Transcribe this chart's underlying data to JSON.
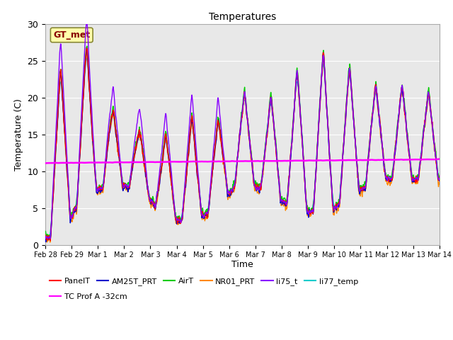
{
  "title": "Temperatures",
  "xlabel": "Time",
  "ylabel": "Temperature (C)",
  "ylim": [
    0,
    30
  ],
  "bg_color": "#e8e8e8",
  "fig_bg": "#ffffff",
  "series_order": [
    "li77_temp",
    "NR01_PRT",
    "AirT",
    "AM25T_PRT",
    "PanelT",
    "li75_t",
    "TC Prof A -32cm"
  ],
  "series": {
    "PanelT": {
      "color": "#ff0000",
      "lw": 1.0,
      "zorder": 5
    },
    "AM25T_PRT": {
      "color": "#0000cc",
      "lw": 1.0,
      "zorder": 4
    },
    "AirT": {
      "color": "#00cc00",
      "lw": 1.0,
      "zorder": 3
    },
    "NR01_PRT": {
      "color": "#ff8800",
      "lw": 1.0,
      "zorder": 2
    },
    "li75_t": {
      "color": "#8800ff",
      "lw": 1.0,
      "zorder": 6
    },
    "li77_temp": {
      "color": "#00cccc",
      "lw": 1.0,
      "zorder": 1
    },
    "TC Prof A -32cm": {
      "color": "#ff00ff",
      "lw": 1.8,
      "zorder": 7
    }
  },
  "annotation_text": "GT_met",
  "tc_prof_value": 11.1,
  "xtick_labels": [
    "Feb 28",
    "Feb 29",
    "Mar 1",
    "Mar 2",
    "Mar 3",
    "Mar 4",
    "Mar 5",
    "Mar 6",
    "Mar 7",
    "Mar 8",
    "Mar 9",
    "Mar 10",
    "Mar 11",
    "Mar 12",
    "Mar 13",
    "Mar 14"
  ],
  "day_maxs": [
    24,
    28,
    19,
    16,
    15,
    18,
    17,
    21,
    20,
    24,
    27,
    25,
    22,
    22,
    21,
    22
  ],
  "day_mins": [
    1,
    7,
    8,
    8,
    4,
    3,
    5,
    9,
    7,
    5,
    4,
    6,
    9,
    9,
    9,
    9
  ],
  "li75_extra": [
    4,
    4,
    3,
    3,
    3,
    3,
    3,
    0,
    0,
    0,
    0,
    0,
    0,
    0,
    0,
    0
  ],
  "yticks": [
    0,
    5,
    10,
    15,
    20,
    25,
    30
  ],
  "legend_ncol": 6,
  "legend_row2": [
    "TC Prof A -32cm"
  ]
}
